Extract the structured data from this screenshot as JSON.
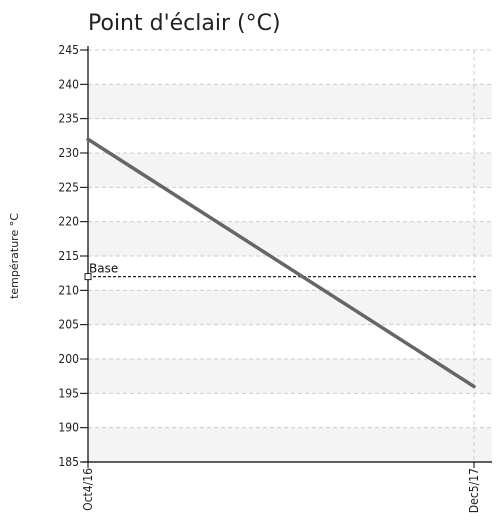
{
  "chart_data": {
    "type": "line",
    "title": "Point d'éclair (°C)",
    "ylabel": "température °C",
    "xlabel": "",
    "ylim": [
      185,
      245
    ],
    "yticks": [
      185,
      190,
      195,
      200,
      205,
      210,
      215,
      220,
      225,
      230,
      235,
      240,
      245
    ],
    "x_tick_labels": [
      "Oct4/16",
      "Dec5/17"
    ],
    "series": [
      {
        "values": [
          232,
          196
        ]
      }
    ],
    "reference_line": {
      "label": "Base",
      "value": 212
    },
    "grid": true,
    "alternating_bands": true,
    "colors": {
      "line": "#666666",
      "band": "#f4f4f4",
      "grid": "#cccccc",
      "axis": "#000000"
    }
  }
}
